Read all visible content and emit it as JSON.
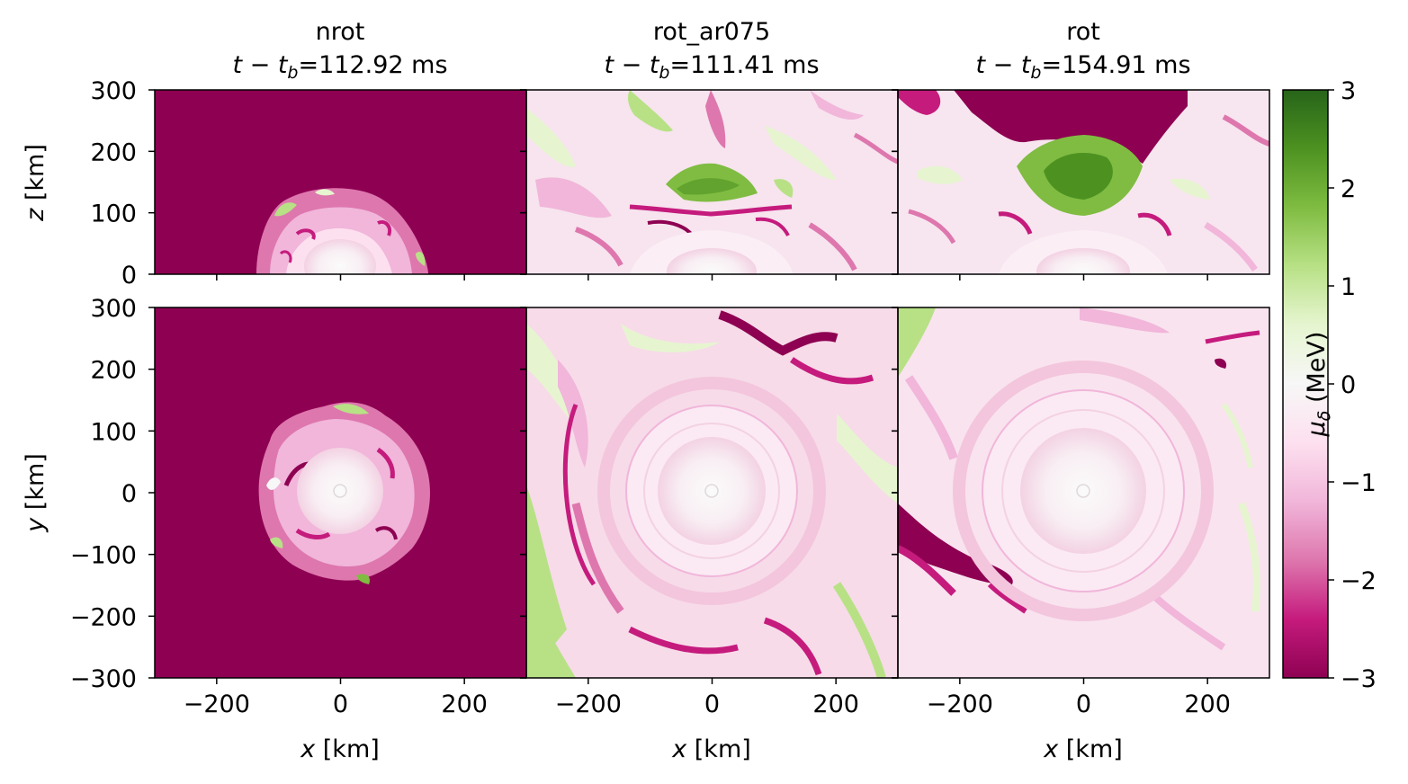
{
  "chart_data": {
    "type": "heatmap",
    "colormap": "PiYG",
    "colorbar": {
      "label_symbol": "μ",
      "label_sub": "δ",
      "label_unit": " (MeV)",
      "range": [
        -3,
        3
      ],
      "ticks": [
        "3",
        "2",
        "1",
        "0",
        "−1",
        "−2",
        "−3"
      ],
      "tick_values": [
        3,
        2,
        1,
        0,
        -1,
        -2,
        -3
      ],
      "colors": [
        "#276419",
        "#4d9221",
        "#7fbc41",
        "#b8e186",
        "#e6f5d0",
        "#f7f7f7",
        "#fde0ef",
        "#f1b6da",
        "#de77ae",
        "#c51b7d",
        "#8e0152"
      ]
    },
    "panels_columns": [
      {
        "name": "nrot",
        "time_prefix": "t − t",
        "time_sub": "b",
        "time_value": "=112.92 ms"
      },
      {
        "name": "rot_ar075",
        "time_prefix": "t − t",
        "time_sub": "b",
        "time_value": "=111.41 ms"
      },
      {
        "name": "rot",
        "time_prefix": "t − t",
        "time_sub": "b",
        "time_value": "=154.91 ms"
      }
    ],
    "top_row": {
      "ylabel_var": "z",
      "ylabel_unit": " [km]",
      "ylim": [
        0,
        300
      ],
      "yticks": [
        "300",
        "200",
        "100",
        "0"
      ],
      "ytick_values": [
        300,
        200,
        100,
        0
      ]
    },
    "bottom_row": {
      "ylabel_var": "y",
      "ylabel_unit": " [km]",
      "ylim": [
        -300,
        300
      ],
      "yticks": [
        "300",
        "200",
        "100",
        "0",
        "−100",
        "−200",
        "−300"
      ],
      "ytick_values": [
        300,
        200,
        100,
        0,
        -100,
        -200,
        -300
      ]
    },
    "x_axis": {
      "xlabel_var": "x",
      "xlabel_unit": " [km]",
      "xlim": [
        -300,
        300
      ],
      "xticks": [
        "−200",
        "0",
        "200"
      ],
      "xtick_values": [
        -200,
        0,
        200
      ]
    }
  }
}
